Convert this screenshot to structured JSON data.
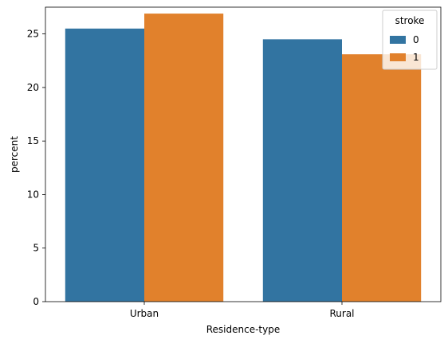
{
  "chart_data": {
    "type": "bar",
    "title": "",
    "xlabel": "Residence-type",
    "ylabel": "percent",
    "categories": [
      "Urban",
      "Rural"
    ],
    "ylim": [
      0,
      27.5
    ],
    "yticks": [
      "0",
      "5",
      "10",
      "15",
      "20",
      "25"
    ],
    "grid": false,
    "legend": {
      "title": "stroke",
      "placement": "top-right"
    },
    "series": [
      {
        "name": "0",
        "color": "#3274a1",
        "values": [
          25.5,
          24.5
        ]
      },
      {
        "name": "1",
        "color": "#e1812c",
        "values": [
          26.9,
          23.1
        ]
      }
    ]
  }
}
